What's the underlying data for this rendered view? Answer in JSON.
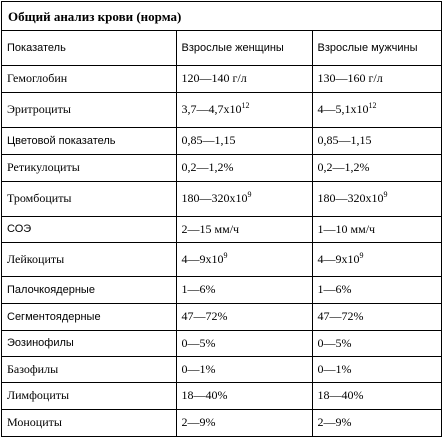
{
  "title": "Общий анализ крови (норма)",
  "header": {
    "col1": "Показатель",
    "col2": "Взрослые женщины",
    "col3": "Взрослые мужчины"
  },
  "rows": [
    {
      "name": "Гемоглобин",
      "women": "120—140 г/л",
      "men": "130—160 г/л",
      "women_sup": "",
      "men_sup": ""
    },
    {
      "name": "Эритроциты",
      "women": "3,7—4,7х10",
      "men": "4—5,1х10",
      "women_sup": "12",
      "men_sup": "12"
    },
    {
      "name": "Цветовой показатель",
      "women": "0,85—1,15",
      "men": "0,85—1,15",
      "women_sup": "",
      "men_sup": ""
    },
    {
      "name": "Ретикулоциты",
      "women": "0,2—1,2%",
      "men": "0,2—1,2%",
      "women_sup": "",
      "men_sup": ""
    },
    {
      "name": "Тромбоциты",
      "women": "180—320х10",
      "men": "180—320х10",
      "women_sup": "9",
      "men_sup": "9"
    },
    {
      "name": "СОЭ",
      "women": "2—15 мм/ч",
      "men": "1—10 мм/ч",
      "women_sup": "",
      "men_sup": ""
    },
    {
      "name": "Лейкоциты",
      "women": "4—9х10",
      "men": "4—9х10",
      "women_sup": "9",
      "men_sup": "9"
    },
    {
      "name": "Палочкоядерные",
      "women": "1—6%",
      "men": "1—6%",
      "women_sup": "",
      "men_sup": ""
    },
    {
      "name": "Сегментоядерные",
      "women": "47—72%",
      "men": "47—72%",
      "women_sup": "",
      "men_sup": ""
    },
    {
      "name": "Эозинофилы",
      "women": "0—5%",
      "men": "0—5%",
      "women_sup": "",
      "men_sup": ""
    },
    {
      "name": "Базофилы",
      "women": "0—1%",
      "men": "0—1%",
      "women_sup": "",
      "men_sup": ""
    },
    {
      "name": "Лимфоциты",
      "women": "18—40%",
      "men": "18—40%",
      "women_sup": "",
      "men_sup": ""
    },
    {
      "name": "Моноциты",
      "women": "2—9%",
      "men": "2—9%",
      "women_sup": "",
      "men_sup": ""
    }
  ]
}
